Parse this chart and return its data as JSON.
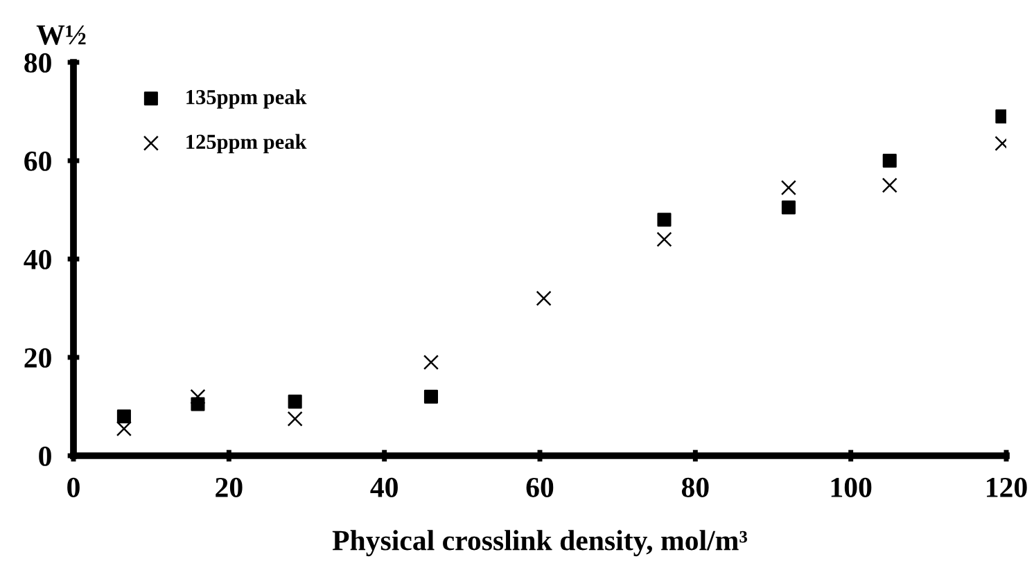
{
  "chart_data": {
    "type": "scatter",
    "xlabel": "Physical crosslink density, mol/m³",
    "ylabel": "W½",
    "xlim": [
      0,
      120
    ],
    "xticks": [
      0,
      20,
      40,
      60,
      80,
      100,
      120
    ],
    "ylim": [
      0,
      80
    ],
    "yticks": [
      0,
      20,
      40,
      60,
      80
    ],
    "grid": false,
    "legend": "top left",
    "series": [
      {
        "name": "135ppm peak",
        "color": "#000000",
        "marker": "square",
        "x": [
          6.5,
          16,
          28.5,
          46,
          76,
          92,
          105,
          119.5
        ],
        "values": [
          8,
          10.5,
          11,
          12,
          48,
          50.5,
          60,
          69
        ]
      },
      {
        "name": "125ppm peak",
        "color": "#000000",
        "marker": "cross",
        "x": [
          6.5,
          16,
          28.5,
          46,
          60.5,
          76,
          92,
          105,
          119.5
        ],
        "values": [
          5.5,
          12,
          7.5,
          19,
          32,
          44,
          54.5,
          55,
          63.5
        ]
      }
    ]
  }
}
